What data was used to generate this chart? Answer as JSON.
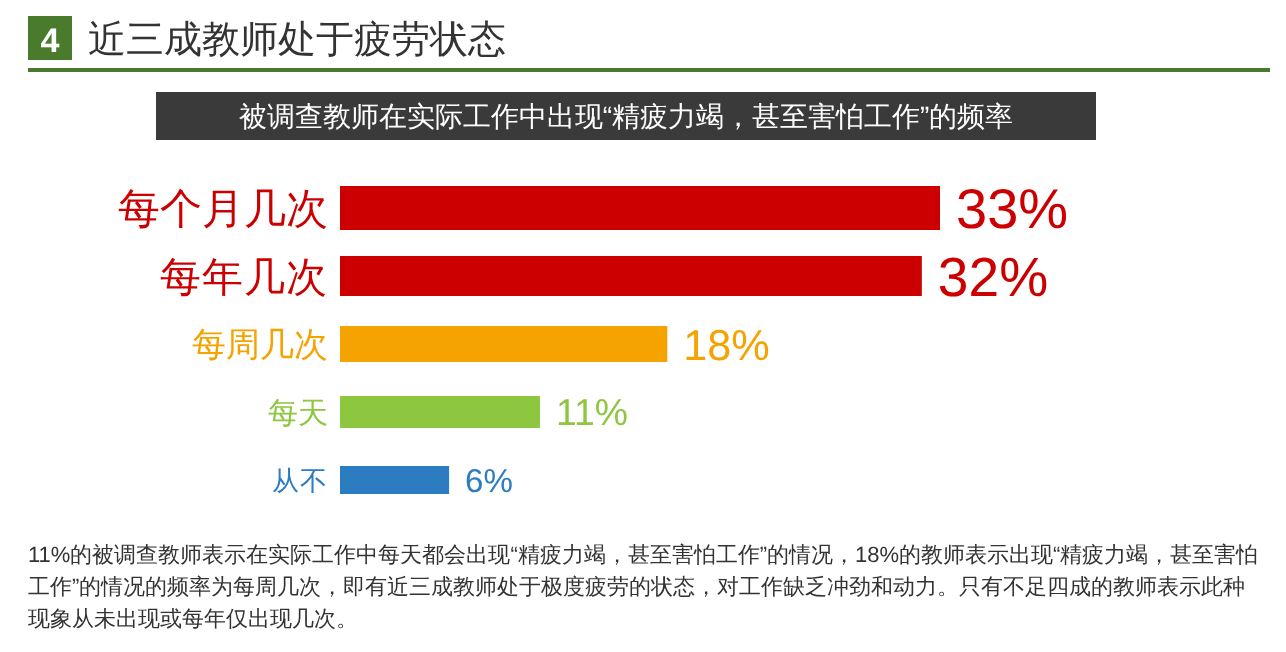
{
  "chart_data": {
    "type": "bar",
    "orientation": "horizontal",
    "title": "近三成教师处于疲劳状态",
    "subtitle": "被调查教师在实际工作中出现“精疲力竭，甚至害怕工作”的频率",
    "categories": [
      "每个月几次",
      "每年几次",
      "每周几次",
      "每天",
      "从不"
    ],
    "values": [
      33,
      32,
      18,
      11,
      6
    ],
    "value_labels": [
      "33%",
      "32%",
      "18%",
      "11%",
      "6%"
    ],
    "colors": [
      "#cc0000",
      "#cc0000",
      "#f5a300",
      "#8dc63f",
      "#2b7cc1"
    ],
    "annotations": [
      "4",
      "11%的被调查教师表示在实际工作中每天都会出现“精疲力竭，甚至害怕工作”的情况，18%的教师表示出现“精疲力竭，甚至害怕工作”的情况的频率为每周几次，即有近三成教师处于极度疲劳的状态，对工作缺乏冲劲和动力。只有不足四成的教师表示此种现象从未出现或每年仅出现几次。"
    ]
  }
}
